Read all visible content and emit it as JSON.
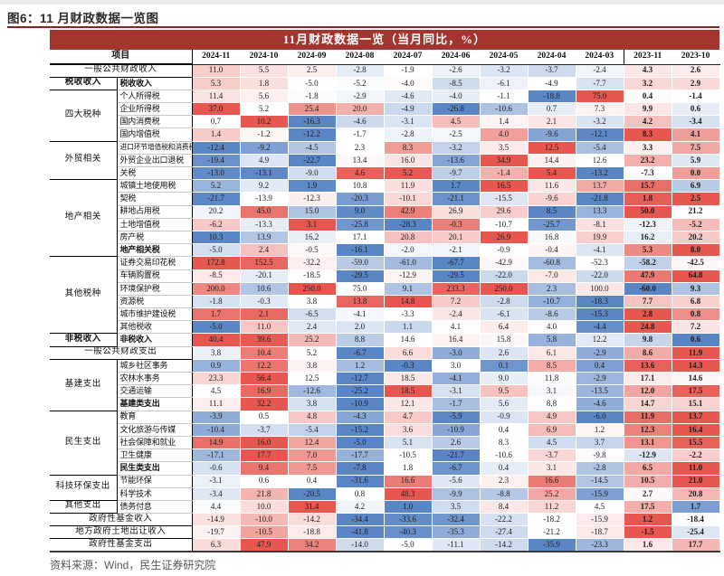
{
  "page": {
    "caption": "图6：11 月财政数据一览图",
    "source": "资料来源：Wind，民生证券研究院"
  },
  "colors": {
    "banner_bg": "#a3352e",
    "banner_text": "#ffffff",
    "caption_rule": "#8b2320",
    "heat_low": "#5b86c6",
    "heat_mid": "#ffffff",
    "heat_high": "#e5574f",
    "source_text": "#595959"
  },
  "chart_data": {
    "type": "heatmap",
    "title": "11月财政数据一览（当月同比，%）",
    "item_header": "项目",
    "columns": [
      "2024-11",
      "2024-10",
      "2024-09",
      "2024-08",
      "2024-07",
      "2024-06",
      "2024-05",
      "2024-04",
      "2024-03",
      "2023-11",
      "2023-10"
    ],
    "divider_col": 9,
    "bold_cols_from": 9,
    "legend": "per-row red(high)/blue(low) shading",
    "rows": [
      {
        "merged": true,
        "muted": true,
        "label": "一般公共财政收入",
        "values": [
          11.0,
          5.5,
          2.5,
          -2.8,
          -1.9,
          -2.6,
          -3.2,
          -3.7,
          -2.4,
          4.3,
          2.6
        ]
      },
      {
        "group": "税收收入",
        "gspan": 1,
        "gbold": true,
        "bold": true,
        "muted": true,
        "label": "税收收入",
        "values": [
          5.3,
          1.8,
          -5.0,
          -5.2,
          -4.0,
          -8.5,
          -6.1,
          -4.9,
          -7.7,
          3.2,
          2.9
        ]
      },
      {
        "group": "四大税种",
        "gspan": 4,
        "label": "个人所得税",
        "values": [
          11.4,
          5.6,
          -1.8,
          -2.9,
          -4.6,
          -4.0,
          -1.1,
          -18.8,
          75.0,
          0.4,
          -1.4
        ]
      },
      {
        "label": "企业所得税",
        "values": [
          37.0,
          5.2,
          25.4,
          20.0,
          -4.9,
          -26.8,
          -10.6,
          0.7,
          7.3,
          9.9,
          0.6
        ]
      },
      {
        "label": "国内消费税",
        "values": [
          0.7,
          10.2,
          -16.3,
          -4.6,
          -3.1,
          4.5,
          1.4,
          2.1,
          -3.2,
          4.2,
          -3.4
        ]
      },
      {
        "label": "国内增值税",
        "values": [
          1.4,
          -1.2,
          -12.2,
          -1.7,
          -2.8,
          -2.5,
          4.0,
          -9.6,
          -12.1,
          8.3,
          4.1
        ]
      },
      {
        "group": "外贸相关",
        "gspan": 3,
        "label": "进口环节增值税和消费税",
        "values": [
          -12.4,
          -9.2,
          -4.5,
          2.3,
          8.3,
          -3.2,
          3.5,
          12.5,
          -5.4,
          3.3,
          7.5
        ]
      },
      {
        "label": "外贸企业出口退税",
        "values": [
          -19.4,
          4.9,
          -22.7,
          13.4,
          16.0,
          -13.6,
          34.9,
          14.4,
          12.6,
          23.2,
          5.9
        ]
      },
      {
        "label": "关税",
        "values": [
          -13.0,
          -13.1,
          -9.0,
          4.6,
          5.2,
          -9.7,
          -1.4,
          5.4,
          -13.2,
          -7.3,
          0.0
        ]
      },
      {
        "group": "地产相关",
        "gspan": 6,
        "label": "城镇土地使用税",
        "values": [
          5.2,
          9.2,
          1.9,
          10.8,
          11.9,
          1.7,
          16.5,
          11.6,
          13.7,
          15.7,
          6.9
        ]
      },
      {
        "label": "契税",
        "values": [
          -21.7,
          -13.9,
          -12.3,
          -20.3,
          -10.1,
          -21.1,
          -15.5,
          -9.6,
          -21.8,
          1.8,
          2.5
        ]
      },
      {
        "label": "耕地占用税",
        "values": [
          20.2,
          45.0,
          15.0,
          9.0,
          42.9,
          26.9,
          29.6,
          8.5,
          13.3,
          50.0,
          21.2
        ]
      },
      {
        "label": "土地增值税",
        "values": [
          -6.2,
          -13.3,
          3.1,
          -25.8,
          -28.3,
          -0.3,
          -10.7,
          -25.7,
          -8.1,
          -12.3,
          -5.2
        ]
      },
      {
        "label": "房产税",
        "values": [
          10.3,
          13.9,
          16.2,
          17.1,
          20.8,
          20.1,
          26.9,
          16.8,
          19.9,
          16.2,
          20.2
        ]
      },
      {
        "label": "地产相关税",
        "bold": true,
        "values": [
          -5.0,
          2.4,
          -0.5,
          -16.1,
          -2.0,
          -2.1,
          -0.9,
          -0.4,
          -4.1,
          5.3,
          8.0
        ]
      },
      {
        "group": "其他税种",
        "gspan": 6,
        "label": "证券交易印花税",
        "values": [
          172.8,
          152.5,
          -32.2,
          -59.0,
          -61.0,
          -67.7,
          -42.9,
          -60.8,
          -52.3,
          -58.2,
          -42.5
        ]
      },
      {
        "label": "车辆购置税",
        "values": [
          -8.5,
          -20.1,
          -18.5,
          -29.5,
          -12.9,
          -29.5,
          -22.0,
          -7.0,
          -22.0,
          47.9,
          64.8
        ]
      },
      {
        "label": "环境保护税",
        "values": [
          200.0,
          10.6,
          250.0,
          75.0,
          9.1,
          233.3,
          250.0,
          2.3,
          100.0,
          -60.0,
          9.3
        ]
      },
      {
        "label": "资源税",
        "values": [
          -1.8,
          -0.3,
          3.8,
          13.8,
          14.8,
          7.2,
          -2.8,
          -10.7,
          -18.3,
          7.7,
          6.8
        ]
      },
      {
        "label": "城市维护建设税",
        "values": [
          1.7,
          2.1,
          -6.5,
          -4.1,
          -3.3,
          -2.4,
          -6.1,
          -8.6,
          -15.3,
          2.8,
          0.8
        ]
      },
      {
        "label": "其他税收",
        "values": [
          -5.0,
          11.0,
          2.4,
          2.0,
          1.1,
          4.1,
          6.4,
          4.0,
          -4.4,
          24.8,
          7.2
        ]
      },
      {
        "group": "非税收入",
        "gspan": 1,
        "gbold": true,
        "bold": true,
        "label": "非税收入",
        "values": [
          40.4,
          39.6,
          25.2,
          8.8,
          14.6,
          16.4,
          15.8,
          5.8,
          12.2,
          9.8,
          0.6
        ]
      },
      {
        "merged": true,
        "label": "一般公共财政支出",
        "values": [
          3.8,
          10.4,
          5.2,
          -6.7,
          6.6,
          -3.0,
          2.6,
          6.1,
          -2.9,
          8.6,
          11.9
        ]
      },
      {
        "group": "基建支出",
        "gspan": 4,
        "label": "城乡社区事务",
        "values": [
          0.9,
          12.2,
          3.8,
          1.2,
          -0.3,
          3.0,
          0.1,
          8.5,
          0.4,
          13.6,
          14.3
        ]
      },
      {
        "label": "农林水事务",
        "values": [
          23.3,
          56.4,
          12.5,
          -12.7,
          18.5,
          -4.1,
          9.0,
          11.8,
          -2.9,
          17.1,
          14.6
        ]
      },
      {
        "label": "交通运输",
        "values": [
          4.5,
          16.9,
          -12.6,
          -25.2,
          18.5,
          -3.1,
          9.5,
          3.1,
          -13.5,
          12.0,
          17.5
        ]
      },
      {
        "label": "基建类支出",
        "bold": true,
        "values": [
          11.1,
          32.2,
          3.8,
          -10.9,
          12.1,
          -1.7,
          5.6,
          8.8,
          -4.6,
          14.7,
          15.1
        ]
      },
      {
        "group": "民生支出",
        "gspan": 5,
        "label": "教育",
        "values": [
          -3.9,
          0.5,
          4.8,
          -4.3,
          4.7,
          -5.9,
          -0.9,
          4.9,
          -6.0,
          11.9,
          13.7
        ]
      },
      {
        "label": "文化旅游与传媒",
        "values": [
          -10.4,
          -3.7,
          -5.4,
          -15.2,
          3.6,
          -10.9,
          0.4,
          6.9,
          1.2,
          12.3,
          16.4
        ]
      },
      {
        "label": "社会保障和就业",
        "values": [
          14.9,
          16.0,
          12.4,
          -5.0,
          5.1,
          2.6,
          8.3,
          4.5,
          3.7,
          13.1,
          15.5
        ]
      },
      {
        "label": "卫生健康",
        "values": [
          -17.1,
          17.7,
          7.0,
          -17.7,
          -10.5,
          -21.7,
          -10.6,
          -3.7,
          -9.8,
          -12.9,
          -2.2
        ]
      },
      {
        "label": "民生类支出",
        "bold": true,
        "values": [
          -0.6,
          9.4,
          7.5,
          -7.8,
          1.8,
          -6.7,
          0.4,
          3.1,
          -2.8,
          6.5,
          11.0
        ]
      },
      {
        "group": "科技环保支出",
        "gspan": 2,
        "label": "节能环保",
        "values": [
          -3.1,
          0.6,
          0.4,
          -31.6,
          16.6,
          -5.6,
          2.3,
          16.6,
          -14.5,
          10.5,
          21.0
        ]
      },
      {
        "label": "科学技术",
        "values": [
          -3.4,
          21.8,
          -20.5,
          0.8,
          48.3,
          -9.9,
          -8.8,
          25.2,
          -15.9,
          2.7,
          20.8
        ]
      },
      {
        "group": "其他支出",
        "gspan": 1,
        "label": "债务付息",
        "values": [
          4.4,
          10.0,
          31.4,
          4.2,
          1.0,
          3.5,
          8.4,
          11.2,
          4.5,
          17.5,
          1.7
        ]
      },
      {
        "merged": true,
        "label": "政府性基金收入",
        "values": [
          -14.9,
          -10.0,
          -14.2,
          -34.4,
          -33.6,
          -32.4,
          -22.2,
          -18.2,
          -15.9,
          1.2,
          -18.4
        ]
      },
      {
        "merged": true,
        "label": "地方政府土地出让收入",
        "values": [
          -19.7,
          -10.5,
          -18.8,
          -41.8,
          -40.3,
          -35.3,
          -27.4,
          -21.2,
          -18.7,
          -1.5,
          -25.4
        ]
      },
      {
        "merged": true,
        "label": "政府性基金支出",
        "values": [
          6.3,
          47.9,
          34.2,
          -14.0,
          -5.0,
          -11.1,
          -14.2,
          -35.9,
          -23.3,
          1.6,
          17.7
        ]
      }
    ]
  }
}
